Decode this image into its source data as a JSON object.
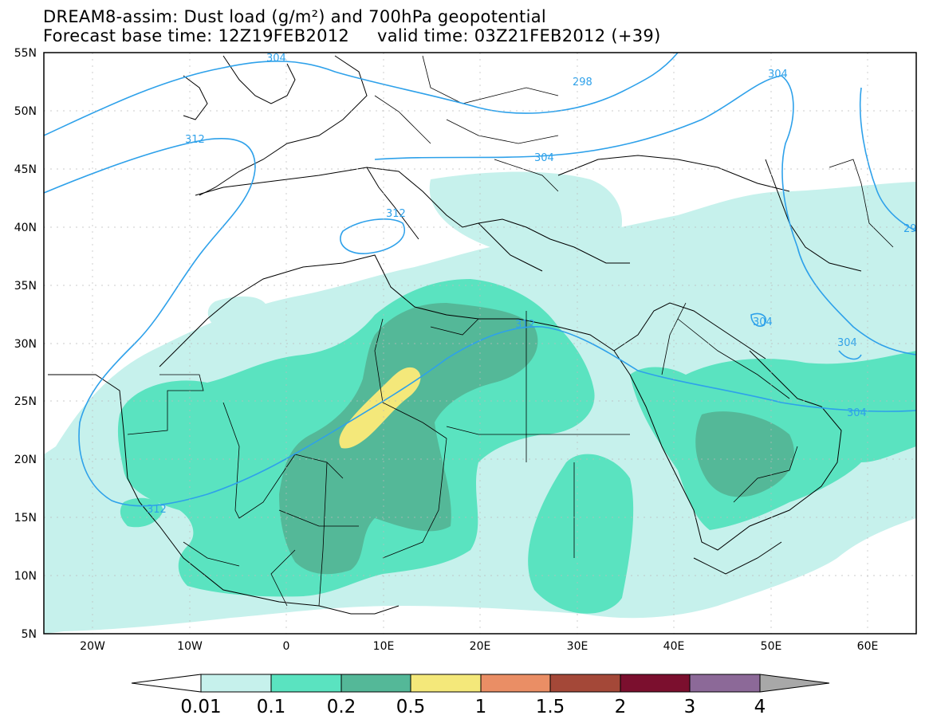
{
  "header": {
    "title_line1": "DREAM8-assim: Dust load (g/m²) and 700hPa geopotential",
    "base_label": "Forecast base time: 12Z19FEB2012",
    "valid_label": "valid time: 03Z21FEB2012 (+39)"
  },
  "axes": {
    "lat_labels": [
      "55N",
      "50N",
      "45N",
      "40N",
      "35N",
      "30N",
      "25N",
      "20N",
      "15N",
      "10N",
      "5N"
    ],
    "lon_labels": [
      "20W",
      "10W",
      "0",
      "10E",
      "20E",
      "30E",
      "40E",
      "50E",
      "60E"
    ]
  },
  "contours": {
    "labels": [
      "304",
      "298",
      "304",
      "312",
      "304",
      "312",
      "304",
      "304",
      "312",
      "312",
      "29"
    ],
    "color": "#2ea1ea"
  },
  "colorbar": {
    "levels": [
      "0.01",
      "0.1",
      "0.2",
      "0.5",
      "1",
      "1.5",
      "2",
      "3",
      "4"
    ],
    "colors": [
      "#c6f1ec",
      "#5ae3c0",
      "#54b898",
      "#f4e87a",
      "#ea8e65",
      "#a44838",
      "#7b0f2e",
      "#8c6998",
      "#a8a8a8"
    ]
  }
}
